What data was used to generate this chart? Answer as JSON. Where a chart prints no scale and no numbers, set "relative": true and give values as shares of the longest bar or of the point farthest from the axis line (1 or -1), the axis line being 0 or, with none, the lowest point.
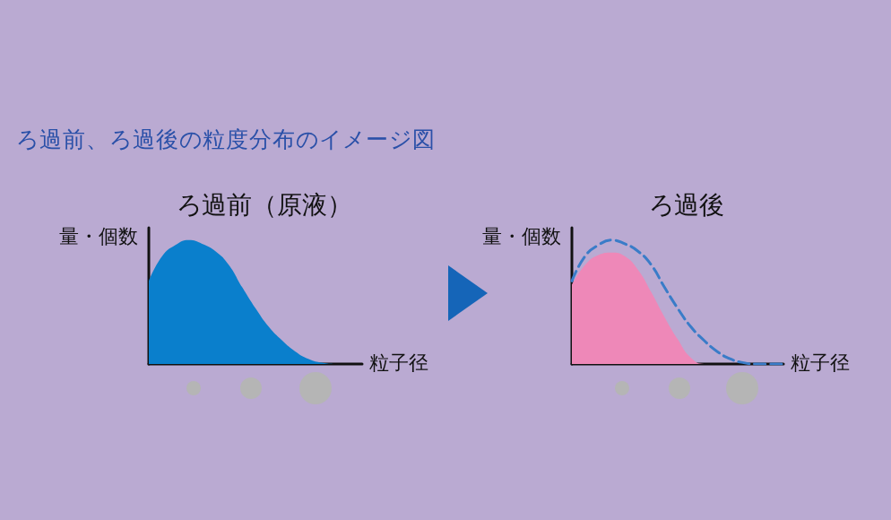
{
  "chart_data": [
    {
      "type": "area",
      "title": "ろ過前、ろ過後の粒度分布のイメージ図",
      "subtitle": "ろ過前（原液）",
      "xlabel": "粒子径",
      "ylabel": "量・個数",
      "relative": true,
      "categories": [
        null,
        null,
        null,
        null,
        null,
        null,
        null,
        null,
        null,
        null,
        null,
        null,
        null,
        null,
        null,
        null,
        null
      ],
      "series": [
        {
          "color": "#0a7fcc",
          "values": [
            0.67,
            0.87,
            0.96,
            1,
            0.97,
            0.91,
            0.8,
            0.62,
            0.45,
            0.3,
            0.19,
            0.1,
            0.04,
            0.01,
            0,
            0,
            0
          ]
        }
      ]
    },
    {
      "type": "area",
      "title": "ろ過後",
      "xlabel": "粒子径",
      "ylabel": "量・個数",
      "relative": true,
      "categories": [
        null,
        null,
        null,
        null,
        null,
        null,
        null,
        null,
        null,
        null,
        null,
        null,
        null,
        null,
        null,
        null,
        null
      ],
      "series": [
        {
          "color": "#ee88b8",
          "values": [
            0.64,
            0.8,
            0.88,
            0.9,
            0.87,
            0.76,
            0.58,
            0.38,
            0.2,
            0.05,
            0,
            0,
            0,
            0,
            0,
            0,
            0
          ]
        },
        {
          "type": "line",
          "color": "#3a7cc8",
          "line_style": "dashed",
          "values": [
            0.67,
            0.87,
            0.96,
            1,
            0.97,
            0.91,
            0.8,
            0.62,
            0.45,
            0.3,
            0.19,
            0.1,
            0.04,
            0.01,
            0,
            0,
            0
          ]
        }
      ]
    }
  ]
}
